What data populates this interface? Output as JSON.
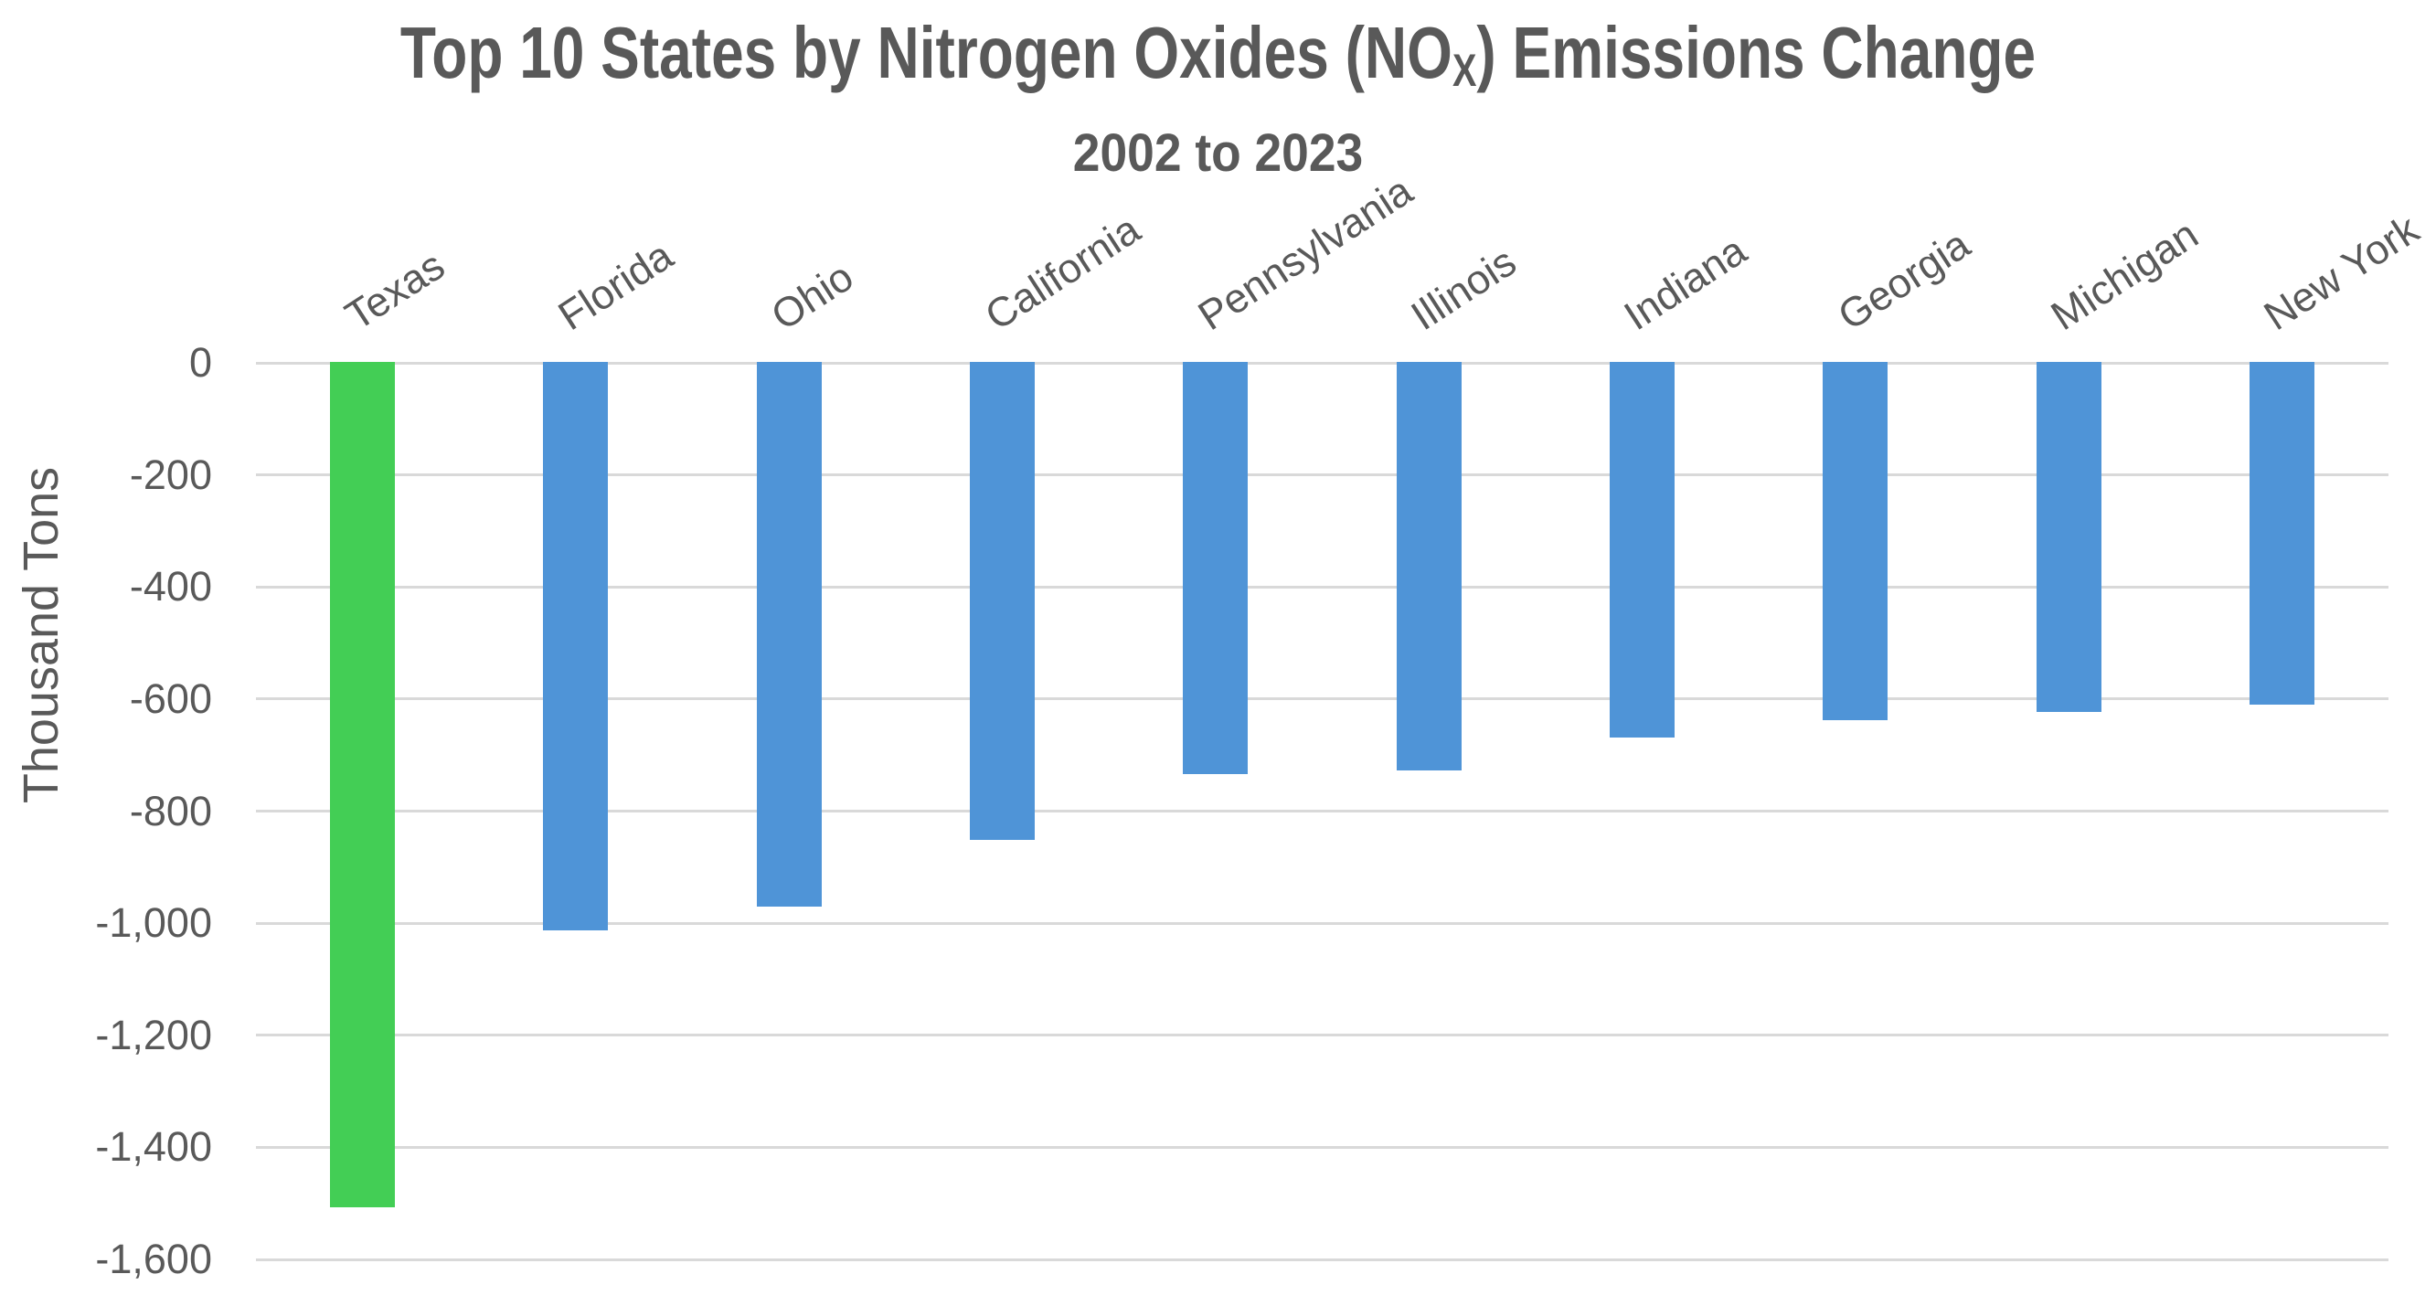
{
  "chart_data": {
    "type": "bar",
    "title": "Top 10 States by Nitrogen Oxides (NOX) Emissions Change",
    "title_parts": {
      "prefix": "Top 10 States by Nitrogen Oxides (NO",
      "subscript": "X",
      "suffix": ") Emissions Change"
    },
    "subtitle": "2002 to 2023",
    "xlabel": "",
    "ylabel": "Thousand Tons",
    "categories": [
      "Texas",
      "Florida",
      "Ohio",
      "California",
      "Pennsylvania",
      "Illinois",
      "Indiana",
      "Georgia",
      "Michigan",
      "New York"
    ],
    "values": [
      -1507,
      -1013,
      -971,
      -852,
      -734,
      -728,
      -669,
      -638,
      -623,
      -610
    ],
    "ylim": [
      -1600,
      0
    ],
    "yticks": [
      0,
      -200,
      -400,
      -600,
      -800,
      -1000,
      -1200,
      -1400,
      -1600
    ],
    "ytick_labels": [
      "0",
      "-200",
      "-400",
      "-600",
      "-800",
      "-1,000",
      "-1,200",
      "-1,400",
      "-1,600"
    ],
    "grid": true,
    "legend": false,
    "category_label_rotation_deg": -33,
    "bar_colors": [
      "#43CE55",
      "#4F94D7",
      "#4F94D7",
      "#4F94D7",
      "#4F94D7",
      "#4F94D7",
      "#4F94D7",
      "#4F94D7",
      "#4F94D7",
      "#4F94D7"
    ],
    "colors": {
      "highlight_bar": "#43CE55",
      "default_bar": "#4F94D7",
      "gridline": "#D9D9D9",
      "text": "#595959",
      "background": "#FFFFFF"
    }
  }
}
